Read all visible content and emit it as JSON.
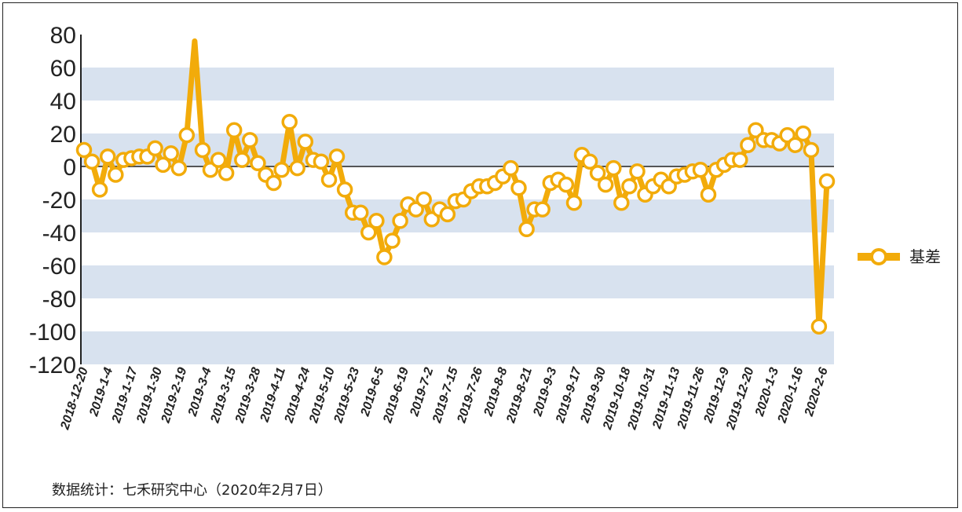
{
  "chart_data": {
    "type": "line",
    "title": "",
    "xlabel": "",
    "ylabel": "",
    "ylim": [
      -120,
      80
    ],
    "yticks": [
      80,
      60,
      40,
      20,
      0,
      -20,
      -40,
      -60,
      -80,
      -100,
      -120
    ],
    "grid": "alternating horizontal bands",
    "legend_position": "right",
    "colors": {
      "series": "#f2ab0a",
      "band": "#d8e2ef",
      "marker_fill": "#ffffff"
    },
    "x_tick_labels": [
      "2018-12-20",
      "2019-1-4",
      "2019-1-17",
      "2019-1-30",
      "2019-2-19",
      "2019-3-4",
      "2019-3-15",
      "2019-3-28",
      "2019-4-11",
      "2019-4-24",
      "2019-5-10",
      "2019-5-23",
      "2019-6-5",
      "2019-6-19",
      "2019-7-2",
      "2019-7-15",
      "2019-7-26",
      "2019-8-8",
      "2019-8-21",
      "2019-9-3",
      "2019-9-17",
      "2019-9-30",
      "2019-10-18",
      "2019-10-31",
      "2019-11-13",
      "2019-11-26",
      "2019-12-9",
      "2019-12-20",
      "2020-1-3",
      "2020-1-16",
      "2020-2-6"
    ],
    "series": [
      {
        "name": "基差",
        "values": [
          10,
          3,
          -14,
          6,
          -5,
          4,
          5,
          6,
          6,
          11,
          1,
          8,
          -1,
          19,
          76,
          10,
          -2,
          4,
          -4,
          22,
          4,
          16,
          2,
          -5,
          -10,
          -2,
          27,
          -1,
          15,
          4,
          3,
          -8,
          6,
          -14,
          -28,
          -28,
          -40,
          -33,
          -55,
          -45,
          -33,
          -23,
          -26,
          -20,
          -32,
          -26,
          -29,
          -21,
          -20,
          -15,
          -12,
          -12,
          -10,
          -6,
          -1,
          -13,
          -38,
          -26,
          -26,
          -10,
          -8,
          -11,
          -22,
          7,
          3,
          -4,
          -11,
          -1,
          -22,
          -12,
          -3,
          -17,
          -12,
          -8,
          -12,
          -6,
          -5,
          -3,
          -2,
          -17,
          -2,
          1,
          4,
          4,
          13,
          22,
          16,
          16,
          14,
          19,
          13,
          20,
          10,
          -97,
          -9
        ]
      }
    ]
  },
  "source_text": "数据统计：七禾研究中心（2020年2月7日）"
}
